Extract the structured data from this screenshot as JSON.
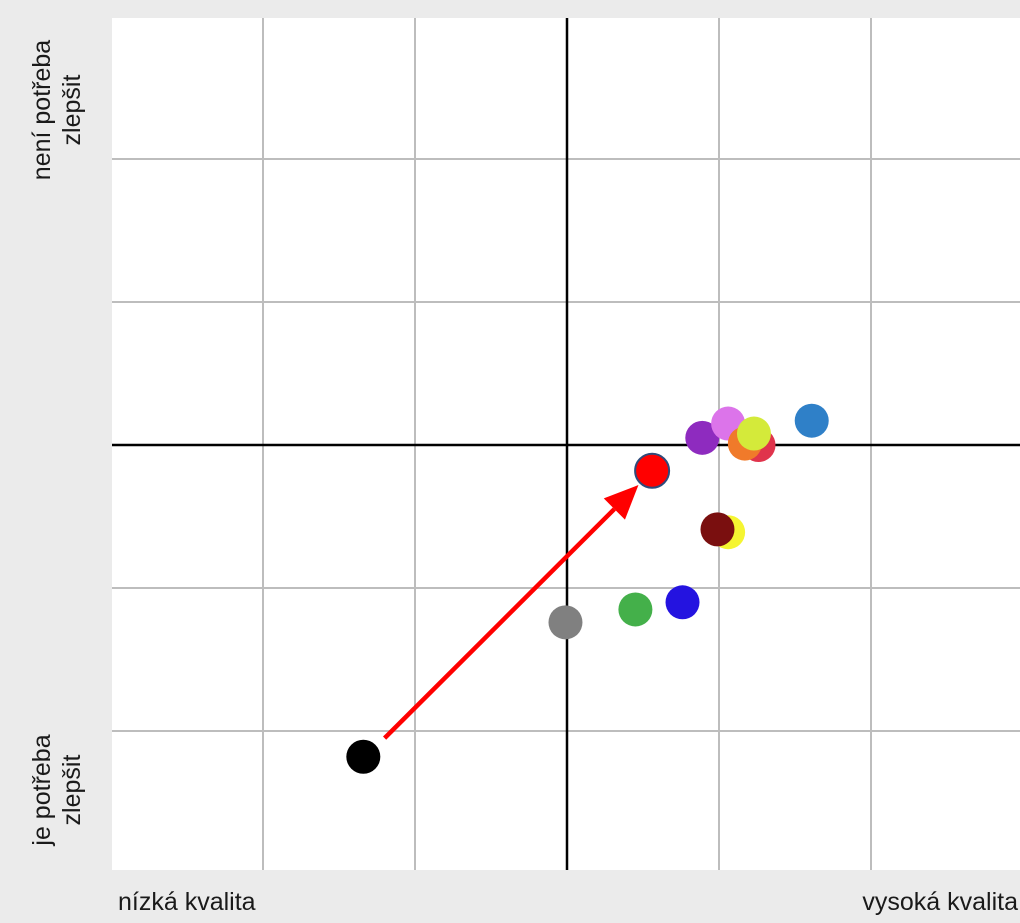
{
  "chart_data": {
    "type": "scatter",
    "x_axis": {
      "low_label": "nízká kvalita",
      "high_label": "vysoká kvalita",
      "range": [
        -3,
        3
      ]
    },
    "y_axis": {
      "low_label": [
        "je potřeba",
        "zlepšit"
      ],
      "high_label": [
        "není potřeba",
        "zlepšit"
      ],
      "range": [
        -3,
        3
      ]
    },
    "grid": true,
    "center_axes": true,
    "points": [
      {
        "x": -1.34,
        "y": -2.18,
        "color": "#000000"
      },
      {
        "x": -0.01,
        "y": -1.24,
        "color": "#808080"
      },
      {
        "x": 0.45,
        "y": -1.15,
        "color": "#44b04a"
      },
      {
        "x": 0.76,
        "y": -1.1,
        "color": "#2413e0"
      },
      {
        "x": 1.06,
        "y": -0.61,
        "color": "#f5f531"
      },
      {
        "x": 0.99,
        "y": -0.59,
        "color": "#7a0f0f"
      },
      {
        "x": 0.56,
        "y": -0.18,
        "color": "#ff0000",
        "outline": "#2f4a7a"
      },
      {
        "x": 0.89,
        "y": 0.05,
        "color": "#8e2bbf"
      },
      {
        "x": 1.06,
        "y": 0.15,
        "color": "#dc74ea"
      },
      {
        "x": 1.26,
        "y": 0.0,
        "color": "#e0344c"
      },
      {
        "x": 1.17,
        "y": 0.01,
        "color": "#f07a2a"
      },
      {
        "x": 1.23,
        "y": 0.08,
        "color": "#d4ea3a"
      },
      {
        "x": 1.61,
        "y": 0.17,
        "color": "#2f80c8"
      }
    ],
    "arrow": {
      "from": [
        -1.2,
        -2.05
      ],
      "to": [
        0.47,
        -0.28
      ],
      "color": "#ff0000"
    }
  }
}
